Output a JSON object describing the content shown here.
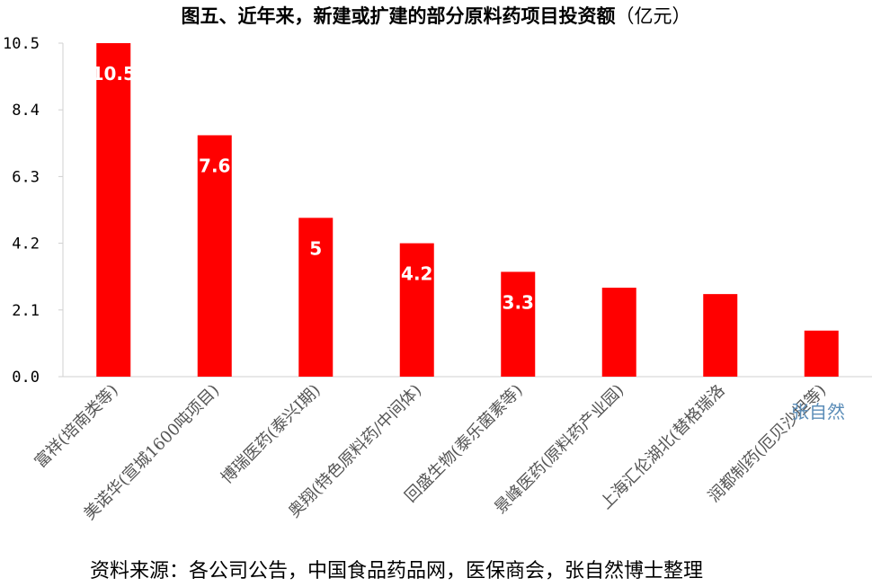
{
  "chart_data": {
    "type": "bar",
    "title": "图五、近年来，新建或扩建的部分原料药项目投资额",
    "title_unit": "（亿元）",
    "xlabel": "",
    "ylabel": "",
    "ylim": [
      0,
      10.5
    ],
    "yticks": [
      "0.0",
      "2.1",
      "4.2",
      "6.3",
      "8.4",
      "10.5"
    ],
    "grid": false,
    "legend": "none",
    "bar_color": "#ff0000",
    "categories": [
      "富祥(培南类等)",
      "美诺华(宣城1600吨项目)",
      "博瑞医药(泰兴I期)",
      "奥翔(特色原料药/中间体)",
      "回盛生物(泰乐菌素等)",
      "景峰医药(原料药产业园)",
      "上海汇伦湖北(替格瑞洛",
      "润都制药(厄贝沙坦等)"
    ],
    "values": [
      10.5,
      7.6,
      5,
      4.2,
      3.3,
      2.8,
      2.6,
      1.45
    ],
    "data_labels": [
      "10.5",
      "7.6",
      "5",
      "4.2",
      "3.3",
      "",
      "",
      ""
    ],
    "watermark": "张自然",
    "source": "资料来源：各公司公告，中国食品药品网，医保商会，张自然博士整理"
  }
}
